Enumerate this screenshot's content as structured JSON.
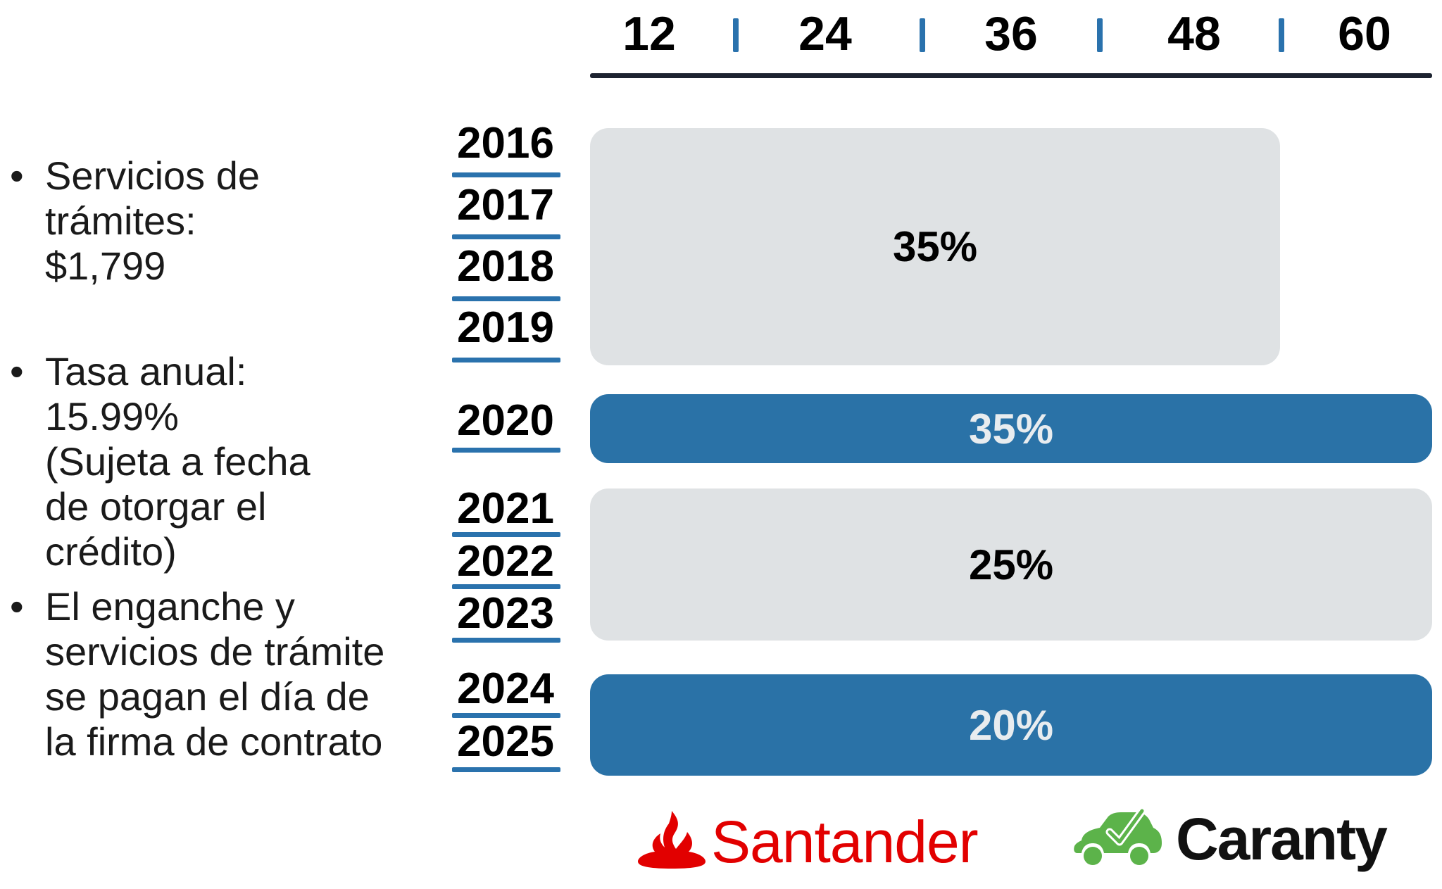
{
  "terms": [
    "12",
    "24",
    "36",
    "48",
    "60"
  ],
  "bullets": [
    {
      "lines": [
        "Servicios de",
        "trámites:",
        "$1,799"
      ]
    },
    {
      "lines": [
        "Tasa anual:",
        "15.99%",
        "(Sujeta a fecha",
        "de otorgar el",
        "crédito)"
      ]
    },
    {
      "lines": [
        "El enganche y",
        "servicios de trámite",
        "se pagan el día de",
        "la firma de contrato"
      ]
    }
  ],
  "years": [
    "2016",
    "2017",
    "2018",
    "2019",
    "2020",
    "2021",
    "2022",
    "2023",
    "2024",
    "2025"
  ],
  "bars": [
    {
      "years": [
        "2016",
        "2017",
        "2018",
        "2019"
      ],
      "max_term": 48,
      "label": "35%",
      "style": "gray"
    },
    {
      "years": [
        "2020"
      ],
      "max_term": 60,
      "label": "35%",
      "style": "blue"
    },
    {
      "years": [
        "2021",
        "2022",
        "2023"
      ],
      "max_term": 60,
      "label": "25%",
      "style": "gray"
    },
    {
      "years": [
        "2024",
        "2025"
      ],
      "max_term": 60,
      "label": "20%",
      "style": "blue"
    }
  ],
  "logos": {
    "santander": {
      "text": "Santander",
      "color": "#e20000",
      "icon": "flame-icon"
    },
    "caranty": {
      "text": "Caranty",
      "color": "#111111",
      "icon": "car-check-icon",
      "icon_color": "#5cb34a"
    }
  },
  "colors": {
    "accent_blue": "#2a72a7",
    "bar_gray": "#dfe2e4",
    "rule_dark": "#1d2330"
  }
}
